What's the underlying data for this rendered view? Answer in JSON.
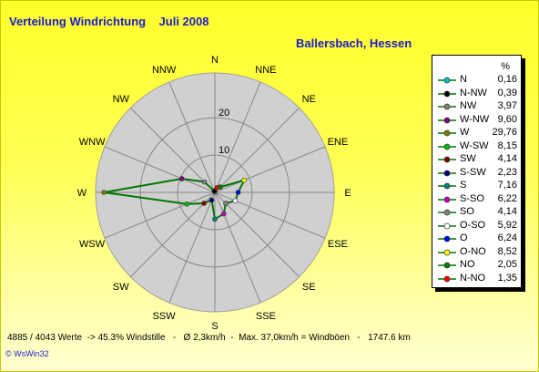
{
  "title": "Verteilung Windrichtung    Juli 2008",
  "subtitle": "Ballersbach, Hessen",
  "footer": "4885 / 4043 Werte  -> 45.3% Windstille   -   Ø 2,3km/h  -  Max. 37,0km/h = Windböen   -   1747.6 km",
  "copyright": "© WsWin32",
  "legend_unit": "%",
  "colors": {
    "series_line": "#007700",
    "disc": "#d0d0d0",
    "spoke": "#888888",
    "title": "#1c1cd0"
  },
  "chart_data": {
    "type": "radar",
    "title": "Verteilung Windrichtung    Juli 2008",
    "subtitle": "Ballersbach, Hessen",
    "directions": [
      "N",
      "NNE",
      "NE",
      "ENE",
      "E",
      "ESE",
      "SE",
      "SSE",
      "S",
      "SSW",
      "SW",
      "WSW",
      "W",
      "WNW",
      "NW",
      "NNW"
    ],
    "ring_labels": [
      "10",
      "20"
    ],
    "rmax": 32,
    "values": {
      "N": 0.16,
      "NNE": 1.35,
      "NE": 2.05,
      "ENE": 8.52,
      "E": 6.24,
      "ESE": 5.92,
      "SE": 4.14,
      "SSE": 6.22,
      "S": 7.16,
      "SSW": 2.23,
      "SW": 4.14,
      "WSW": 8.15,
      "W": 29.76,
      "WNW": 9.6,
      "NW": 3.97,
      "NNW": 0.39
    },
    "legend": [
      {
        "name": "N",
        "value": "0,16",
        "color": "#00c0c0"
      },
      {
        "name": "N-NW",
        "value": "0,39",
        "color": "#000000"
      },
      {
        "name": "NW",
        "value": "3,97",
        "color": "#808080"
      },
      {
        "name": "W-NW",
        "value": "9,60",
        "color": "#800080"
      },
      {
        "name": "W",
        "value": "29,76",
        "color": "#808000"
      },
      {
        "name": "W-SW",
        "value": "8,15",
        "color": "#00c000"
      },
      {
        "name": "SW",
        "value": "4,14",
        "color": "#800000"
      },
      {
        "name": "S-SW",
        "value": "2,23",
        "color": "#000080"
      },
      {
        "name": "S",
        "value": "7,16",
        "color": "#008080"
      },
      {
        "name": "S-SO",
        "value": "6,22",
        "color": "#c000c0"
      },
      {
        "name": "SO",
        "value": "4,14",
        "color": "#808080"
      },
      {
        "name": "O-SO",
        "value": "5,92",
        "color": "#ffffff"
      },
      {
        "name": "O",
        "value": "6,24",
        "color": "#0000ff"
      },
      {
        "name": "O-NO",
        "value": "8,52",
        "color": "#ffff00"
      },
      {
        "name": "NO",
        "value": "2,05",
        "color": "#008000"
      },
      {
        "name": "N-NO",
        "value": "1,35",
        "color": "#ff0000"
      }
    ]
  }
}
